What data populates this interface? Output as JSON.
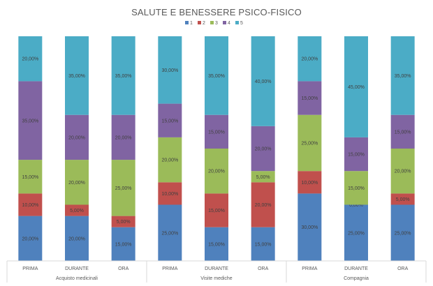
{
  "chart_data": {
    "type": "bar",
    "stacked": true,
    "normalized": true,
    "title": "SALUTE E BENESSERE PSICO-FISICO",
    "legend_position": "top",
    "groups": [
      {
        "label": "Acquisto medicinali",
        "categories": [
          "PRIMA",
          "DURANTE",
          "ORA"
        ]
      },
      {
        "label": "Visite mediche",
        "categories": [
          "PRIMA",
          "DURANTE",
          "ORA"
        ]
      },
      {
        "label": "Compagnia",
        "categories": [
          "PRIMA",
          "DURANTE",
          "ORA"
        ]
      }
    ],
    "series": [
      {
        "name": "1",
        "color": "#4f81bd",
        "values": [
          20,
          20,
          15,
          25,
          15,
          15,
          30,
          25,
          25
        ],
        "labels": [
          "20,00%",
          "20,00%",
          "15,00%",
          "25,00%",
          "15,00%",
          "15,00%",
          "30,00%",
          "25,00%",
          "25,00%"
        ]
      },
      {
        "name": "2",
        "color": "#c0504d",
        "values": [
          10,
          5,
          5,
          10,
          15,
          20,
          10,
          0,
          5
        ],
        "labels": [
          "10,00%",
          "5,00%",
          "5,00%",
          "10,00%",
          "15,00%",
          "20,00%",
          "10,00%",
          "0,00%",
          "5,00%"
        ]
      },
      {
        "name": "3",
        "color": "#9bbb59",
        "values": [
          15,
          20,
          25,
          20,
          20,
          5,
          25,
          15,
          20
        ],
        "labels": [
          "15,00%",
          "20,00%",
          "25,00%",
          "20,00%",
          "20,00%",
          "5,00%",
          "25,00%",
          "15,00%",
          "20,00%"
        ]
      },
      {
        "name": "4",
        "color": "#8064a2",
        "values": [
          35,
          20,
          20,
          15,
          15,
          20,
          15,
          15,
          15
        ],
        "labels": [
          "35,00%",
          "20,00%",
          "20,00%",
          "15,00%",
          "15,00%",
          "20,00%",
          "15,00%",
          "15,00%",
          "15,00%"
        ]
      },
      {
        "name": "5",
        "color": "#4bacc6",
        "values": [
          20,
          35,
          35,
          30,
          35,
          40,
          20,
          45,
          35
        ],
        "labels": [
          "20,00%",
          "35,00%",
          "35,00%",
          "30,00%",
          "35,00%",
          "40,00%",
          "20,00%",
          "45,00%",
          "35,00%"
        ]
      }
    ],
    "ylim": [
      0,
      100
    ],
    "grid": false
  }
}
